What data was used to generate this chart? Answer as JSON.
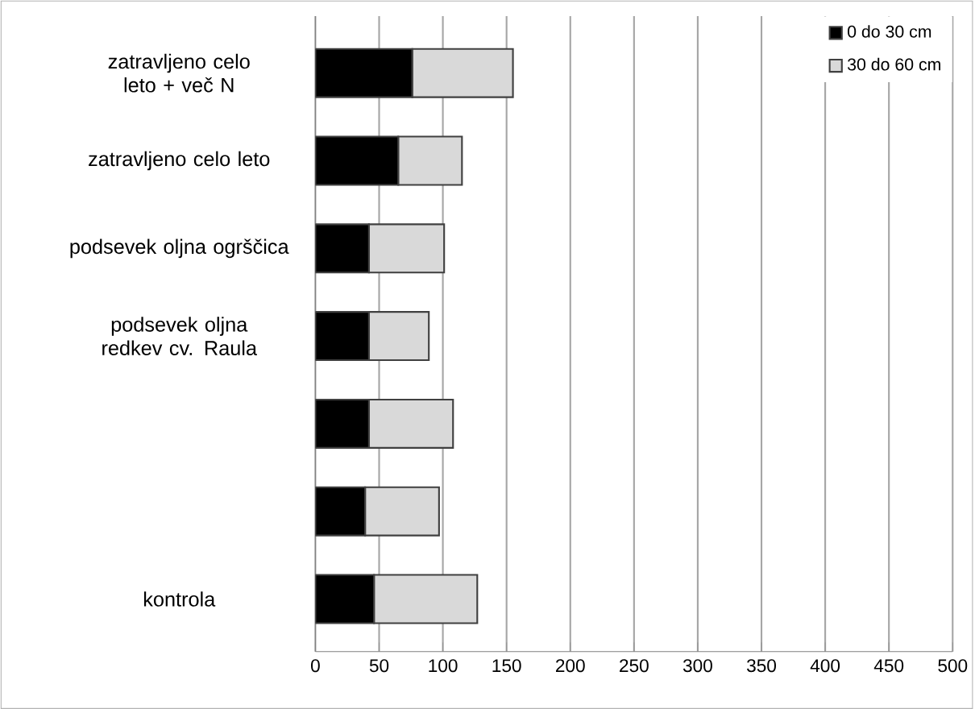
{
  "chart_data": {
    "type": "bar",
    "orientation": "horizontal",
    "stacked": true,
    "categories": [
      "zatravljeno celo leto + več N",
      "zatravljeno  celo leto",
      "podsevek oljna ogrščica",
      "podsevek oljna redkev cv. Raula",
      null,
      null,
      "kontrola"
    ],
    "series": [
      {
        "name": "0 do 30 cm",
        "color": "#000000",
        "values": [
          76,
          65,
          42,
          42,
          42,
          39,
          46
        ]
      },
      {
        "name": "30 do 60 cm",
        "color": "#d9d9d9",
        "values": [
          79,
          50,
          59,
          47,
          66,
          58,
          81
        ]
      }
    ],
    "xlim": [
      0,
      500
    ],
    "xticks": [
      0,
      50,
      100,
      150,
      200,
      250,
      300,
      350,
      400,
      450,
      500
    ],
    "grid": "x",
    "legend": "top right"
  }
}
